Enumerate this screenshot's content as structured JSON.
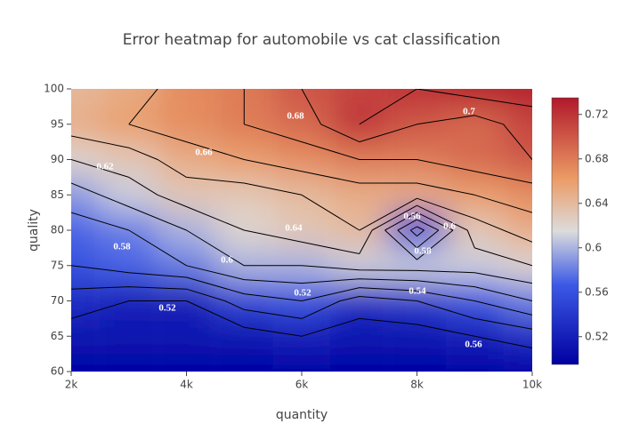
{
  "chart_data": {
    "type": "contour",
    "title": "Error heatmap for automobile vs cat classification",
    "x_label": "quantity",
    "y_label": "quality",
    "x": [
      2000,
      3000,
      4000,
      5000,
      6000,
      7000,
      8000,
      9000,
      10000
    ],
    "y": [
      60,
      65,
      70,
      75,
      80,
      85,
      90,
      95,
      100
    ],
    "z": [
      [
        0.5,
        0.5,
        0.5,
        0.5,
        0.5,
        0.5,
        0.5,
        0.5,
        0.5
      ],
      [
        0.51,
        0.51,
        0.51,
        0.51,
        0.52,
        0.51,
        0.51,
        0.52,
        0.53
      ],
      [
        0.53,
        0.52,
        0.52,
        0.55,
        0.56,
        0.53,
        0.54,
        0.56,
        0.58
      ],
      [
        0.56,
        0.57,
        0.58,
        0.6,
        0.6,
        0.61,
        0.61,
        0.61,
        0.62
      ],
      [
        0.57,
        0.58,
        0.6,
        0.62,
        0.63,
        0.64,
        0.55,
        0.63,
        0.65
      ],
      [
        0.59,
        0.61,
        0.63,
        0.63,
        0.64,
        0.65,
        0.65,
        0.66,
        0.67
      ],
      [
        0.62,
        0.63,
        0.65,
        0.66,
        0.67,
        0.68,
        0.68,
        0.69,
        0.7
      ],
      [
        0.65,
        0.66,
        0.67,
        0.68,
        0.69,
        0.72,
        0.7,
        0.69,
        0.71
      ],
      [
        0.64,
        0.65,
        0.67,
        0.68,
        0.7,
        0.71,
        0.72,
        0.73,
        0.73
      ]
    ],
    "xlim": [
      2000,
      10000
    ],
    "xticks": [
      {
        "value": 2000,
        "label": "2k"
      },
      {
        "value": 4000,
        "label": "4k"
      },
      {
        "value": 6000,
        "label": "6k"
      },
      {
        "value": 8000,
        "label": "8k"
      },
      {
        "value": 10000,
        "label": "10k"
      }
    ],
    "ylim": [
      60,
      100
    ],
    "yticks": [
      60,
      65,
      70,
      75,
      80,
      85,
      90,
      95,
      100
    ],
    "zlim": [
      0.495,
      0.735
    ],
    "colorbar_ticks": [
      0.52,
      0.56,
      0.6,
      0.64,
      0.68,
      0.72
    ],
    "colorscale": [
      [
        0,
        "#0000a0"
      ],
      [
        0.3,
        "#3c5ae6"
      ],
      [
        0.5,
        "#dcdcdc"
      ],
      [
        0.7,
        "#eb9a64"
      ],
      [
        1,
        "#b2182b"
      ]
    ],
    "contour_levels": [
      0.52,
      0.54,
      0.56,
      0.58,
      0.6,
      0.62,
      0.64,
      0.66,
      0.68,
      0.7,
      0.72
    ],
    "contour_labels": [
      0.68,
      0.7,
      0.66,
      0.62,
      0.64,
      0.58,
      0.6,
      0.56,
      0.6,
      0.58,
      0.52,
      0.54,
      0.52,
      0.56
    ]
  }
}
